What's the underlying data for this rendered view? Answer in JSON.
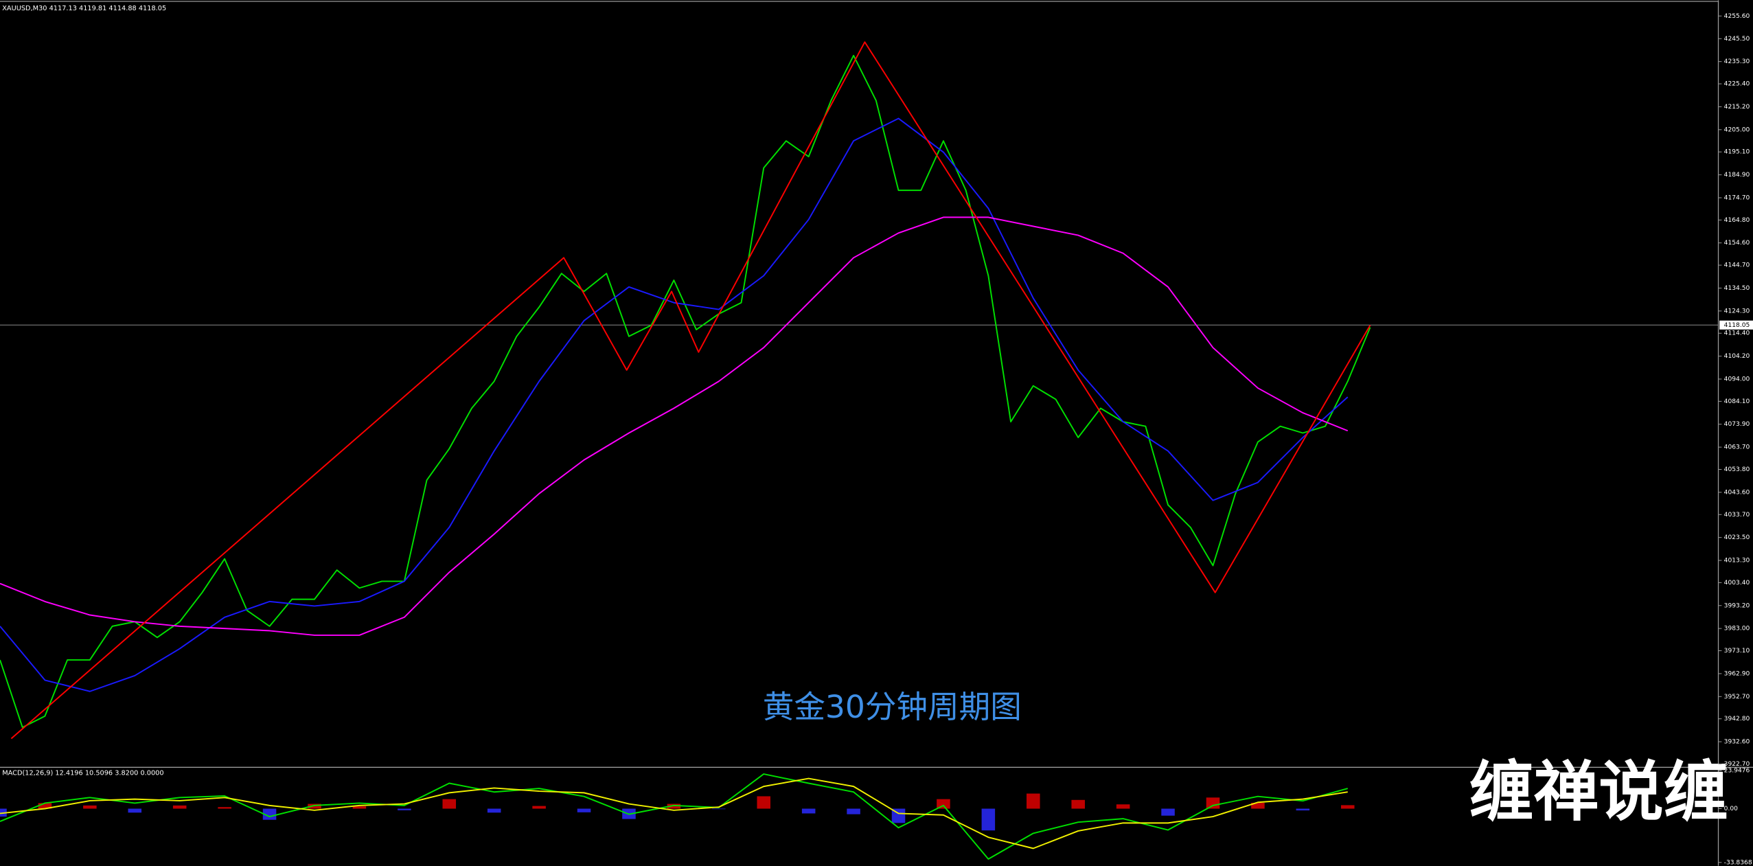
{
  "chart_data": [
    {
      "type": "line",
      "title": "XAUUSD,M30 4117.13 4119.81 4114.88 4118.05",
      "xlim": [
        0,
        76.5
      ],
      "ylim": [
        3921.7,
        4260.6
      ],
      "yticks": [
        {
          "value": 4255.6,
          "label": "4255.60"
        },
        {
          "value": 4245.5,
          "label": "4245.50"
        },
        {
          "value": 4235.3,
          "label": "4235.30"
        },
        {
          "value": 4225.4,
          "label": "4225.40"
        },
        {
          "value": 4215.2,
          "label": "4215.20"
        },
        {
          "value": 4205,
          "label": "4205.00"
        },
        {
          "value": 4195.1,
          "label": "4195.10"
        },
        {
          "value": 4184.9,
          "label": "4184.90"
        },
        {
          "value": 4174.7,
          "label": "4174.70"
        },
        {
          "value": 4164.8,
          "label": "4164.80"
        },
        {
          "value": 4154.6,
          "label": "4154.60"
        },
        {
          "value": 4144.7,
          "label": "4144.70"
        },
        {
          "value": 4134.5,
          "label": "4134.50"
        },
        {
          "value": 4124.3,
          "label": "4124.30"
        },
        {
          "value": 4114.4,
          "label": "4114.40"
        },
        {
          "value": 4104.2,
          "label": "4104.20"
        },
        {
          "value": 4094,
          "label": "4094.00"
        },
        {
          "value": 4084.1,
          "label": "4084.10"
        },
        {
          "value": 4073.9,
          "label": "4073.90"
        },
        {
          "value": 4063.7,
          "label": "4063.70"
        },
        {
          "value": 4053.8,
          "label": "4053.80"
        },
        {
          "value": 4043.6,
          "label": "4043.60"
        },
        {
          "value": 4033.7,
          "label": "4033.70"
        },
        {
          "value": 4023.5,
          "label": "4023.50"
        },
        {
          "value": 4013.3,
          "label": "4013.30"
        },
        {
          "value": 4003.4,
          "label": "4003.40"
        },
        {
          "value": 3993.2,
          "label": "3993.20"
        },
        {
          "value": 3983,
          "label": "3983.00"
        },
        {
          "value": 3973.1,
          "label": "3973.10"
        },
        {
          "value": 3962.9,
          "label": "3962.90"
        },
        {
          "value": 3952.7,
          "label": "3952.70"
        },
        {
          "value": 3942.8,
          "label": "3942.80"
        },
        {
          "value": 3932.6,
          "label": "3932.60"
        },
        {
          "value": 3922.7,
          "label": "3922.70"
        }
      ],
      "price_line": {
        "value": 4118.05,
        "label": "4118.05"
      },
      "series": [
        {
          "color": "#00e000",
          "x": [
            0,
            1,
            2,
            3,
            4,
            5,
            6,
            7,
            8,
            9,
            10,
            11,
            12,
            13,
            14,
            15,
            16,
            17,
            18,
            19,
            20,
            21,
            22,
            23,
            24,
            25,
            26,
            27,
            28,
            29,
            30,
            31,
            32,
            33,
            34,
            35,
            36,
            37,
            38,
            39,
            40,
            41,
            42,
            43,
            44,
            45,
            46,
            47,
            48,
            49,
            50,
            51,
            52,
            53,
            54,
            55,
            56,
            57,
            58,
            59,
            60,
            61
          ],
          "values": [
            3969,
            3939,
            3944,
            3969,
            3969,
            3984,
            3986,
            3979,
            3986,
            3999,
            4014,
            3991,
            3984,
            3996,
            3996,
            4009,
            4001,
            4004,
            4004,
            4049,
            4063,
            4081,
            4093,
            4113,
            4126,
            4141,
            4133,
            4141,
            4113,
            4118,
            4138,
            4116,
            4123,
            4128,
            4188,
            4200,
            4193,
            4218,
            4238,
            4218,
            4178,
            4178,
            4200,
            4178,
            4140,
            4075,
            4091,
            4085,
            4068,
            4081,
            4075,
            4073,
            4038,
            4028,
            4011,
            4043,
            4066,
            4073,
            4070,
            4073,
            4093,
            4117
          ]
        },
        {
          "color": "#1a1aff",
          "x": [
            0,
            2,
            4,
            6,
            8,
            10,
            12,
            14,
            16,
            18,
            20,
            22,
            24,
            26,
            28,
            30,
            32,
            34,
            36,
            38,
            40,
            42,
            44,
            46,
            48,
            50,
            52,
            54,
            56,
            58,
            60
          ],
          "values": [
            3984,
            3960,
            3955,
            3962,
            3974,
            3988,
            3995,
            3993,
            3995,
            4004,
            4028,
            4062,
            4093,
            4120,
            4135,
            4128,
            4125,
            4140,
            4165,
            4200,
            4210,
            4195,
            4170,
            4130,
            4098,
            4075,
            4062,
            4040,
            4048,
            4068,
            4086
          ]
        },
        {
          "color": "#ff00ff",
          "x": [
            0,
            2,
            4,
            6,
            8,
            10,
            12,
            14,
            16,
            18,
            20,
            22,
            24,
            26,
            28,
            30,
            32,
            34,
            36,
            38,
            40,
            42,
            44,
            46,
            48,
            50,
            52,
            54,
            56,
            58,
            60
          ],
          "values": [
            4003,
            3995,
            3989,
            3986,
            3984,
            3983,
            3982,
            3980,
            3980,
            3988,
            4008,
            4025,
            4043,
            4058,
            4070,
            4081,
            4093,
            4108,
            4128,
            4148,
            4159,
            4166,
            4166,
            4162,
            4158,
            4150,
            4135,
            4108,
            4090,
            4079,
            4071
          ]
        },
        {
          "color": "#ff0000",
          "x": [
            0.5,
            25.1,
            27.9,
            29.9,
            31.1,
            38.5,
            54.1,
            61
          ],
          "values": [
            3934,
            4148,
            4098,
            4133,
            4106,
            4244,
            3999,
            4118
          ]
        }
      ]
    },
    {
      "type": "line",
      "title": "MACD(12,26,9) 12.4196 10.5096 3.8200 0.0000",
      "xlim": [
        0,
        76.5
      ],
      "ylim": [
        -35.9,
        25.3
      ],
      "yticks": [
        23.9476,
        {
          "value": 0,
          "label": "0.00"
        },
        -33.8368
      ],
      "series": [
        {
          "style": "bar",
          "color": "#e00000",
          "negative_color": "#2a2aff",
          "x": [
            0,
            2,
            4,
            6,
            8,
            10,
            12,
            14,
            16,
            18,
            20,
            22,
            24,
            26,
            28,
            30,
            32,
            34,
            36,
            38,
            40,
            42,
            44,
            46,
            48,
            50,
            52,
            54,
            56,
            58,
            60
          ],
          "values": [
            -5,
            3.5,
            2,
            -2.5,
            2,
            1,
            -7,
            3,
            1.5,
            -1,
            6,
            -2.5,
            1.7,
            -2.3,
            -6.5,
            3,
            -0.3,
            7.8,
            -3,
            -3.5,
            -9,
            6,
            -13.7,
            9.5,
            5.5,
            2.7,
            -4.4,
            7,
            3.7,
            -1.1,
            2.2
          ]
        },
        {
          "color": "#00e000",
          "x": [
            0,
            2,
            4,
            6,
            8,
            10,
            12,
            14,
            16,
            18,
            20,
            22,
            24,
            26,
            28,
            30,
            32,
            34,
            36,
            38,
            40,
            42,
            44,
            46,
            48,
            50,
            52,
            54,
            56,
            58,
            60
          ],
          "values": [
            -8,
            3.5,
            7,
            3.5,
            7,
            8,
            -5,
            2,
            3.5,
            2,
            16,
            10.5,
            12.7,
            7.7,
            -3.5,
            2,
            0.7,
            21.8,
            16,
            10.5,
            -12,
            2,
            -31.7,
            -15.5,
            -8.5,
            -6.3,
            -13.4,
            2,
            7.7,
            4.9,
            12.7
          ]
        },
        {
          "color": "#f0f000",
          "x": [
            0,
            2,
            4,
            6,
            8,
            10,
            12,
            14,
            16,
            18,
            20,
            22,
            24,
            26,
            28,
            30,
            32,
            34,
            36,
            38,
            40,
            42,
            44,
            46,
            48,
            50,
            52,
            54,
            56,
            58,
            60
          ],
          "values": [
            -3,
            0,
            5,
            6,
            5,
            7,
            2,
            -1,
            2,
            3,
            10,
            13,
            11,
            10,
            3,
            -1,
            1,
            14,
            19,
            14,
            -3,
            -4,
            -18,
            -25,
            -14,
            -9,
            -9,
            -5,
            4,
            6,
            10.5
          ]
        }
      ]
    }
  ],
  "caption": "黄金30分钟周期图",
  "watermark": "缠禅说缠"
}
